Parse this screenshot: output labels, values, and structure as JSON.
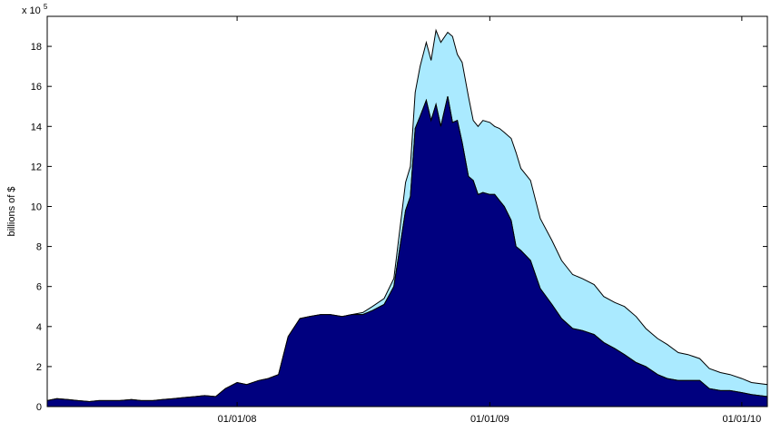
{
  "chart_data": {
    "type": "area",
    "stacked": true,
    "title": "",
    "ylabel": "billions of $",
    "xlabel": "",
    "y_exponent_label": "x 10",
    "y_exponent_power": "5",
    "ylim": [
      0,
      19.5
    ],
    "xlim": [
      "2007-04-01",
      "2010-02-07"
    ],
    "yticks": [
      0,
      2,
      4,
      6,
      8,
      10,
      12,
      14,
      16,
      18
    ],
    "xticks": [
      {
        "date": "2008-01-01",
        "label": "01/01/08"
      },
      {
        "date": "2009-01-01",
        "label": "01/01/09"
      },
      {
        "date": "2010-01-01",
        "label": "01/01/10"
      }
    ],
    "grid": false,
    "legend": "none",
    "colors": {
      "lower": "#00007f",
      "upper": "#aaeaff",
      "outline": "#000000"
    },
    "x": [
      "2007-04-01",
      "2007-04-15",
      "2007-05-01",
      "2007-05-15",
      "2007-06-01",
      "2007-06-15",
      "2007-07-01",
      "2007-07-15",
      "2007-08-01",
      "2007-08-15",
      "2007-09-01",
      "2007-09-15",
      "2007-10-01",
      "2007-10-15",
      "2007-11-01",
      "2007-11-15",
      "2007-12-01",
      "2007-12-15",
      "2008-01-01",
      "2008-01-15",
      "2008-02-01",
      "2008-02-15",
      "2008-03-01",
      "2008-03-15",
      "2008-04-01",
      "2008-04-15",
      "2008-05-01",
      "2008-05-15",
      "2008-06-01",
      "2008-06-15",
      "2008-07-01",
      "2008-07-15",
      "2008-08-01",
      "2008-08-15",
      "2008-09-01",
      "2008-09-08",
      "2008-09-15",
      "2008-09-22",
      "2008-10-01",
      "2008-10-08",
      "2008-10-15",
      "2008-10-22",
      "2008-11-01",
      "2008-11-08",
      "2008-11-15",
      "2008-11-22",
      "2008-12-01",
      "2008-12-08",
      "2008-12-15",
      "2008-12-22",
      "2009-01-01",
      "2009-01-08",
      "2009-01-15",
      "2009-01-22",
      "2009-02-01",
      "2009-02-08",
      "2009-02-15",
      "2009-03-01",
      "2009-03-15",
      "2009-04-01",
      "2009-04-15",
      "2009-05-01",
      "2009-05-15",
      "2009-06-01",
      "2009-06-15",
      "2009-07-01",
      "2009-07-15",
      "2009-08-01",
      "2009-08-15",
      "2009-09-01",
      "2009-09-15",
      "2009-10-01",
      "2009-10-15",
      "2009-11-01",
      "2009-11-15",
      "2009-12-01",
      "2009-12-15",
      "2010-01-01",
      "2010-01-15",
      "2010-02-07"
    ],
    "series": [
      {
        "values": [
          0.3,
          0.4,
          0.35,
          0.3,
          0.25,
          0.3,
          0.3,
          0.3,
          0.35,
          0.3,
          0.3,
          0.35,
          0.4,
          0.45,
          0.5,
          0.55,
          0.5,
          0.9,
          1.2,
          1.1,
          1.3,
          1.4,
          1.6,
          3.5,
          4.4,
          4.5,
          4.6,
          4.6,
          4.5,
          4.6,
          4.6,
          4.8,
          5.1,
          6.0,
          9.8,
          10.5,
          13.9,
          14.5,
          15.3,
          14.3,
          15.1,
          14.0,
          15.5,
          14.2,
          14.3,
          13.2,
          11.5,
          11.3,
          10.6,
          10.7,
          10.6,
          10.6,
          10.3,
          10.0,
          9.3,
          8.0,
          7.8,
          7.3,
          5.9,
          5.1,
          4.4,
          3.9,
          3.8,
          3.6,
          3.2,
          2.9,
          2.6,
          2.2,
          2.0,
          1.6,
          1.4,
          1.3,
          1.3,
          1.3,
          0.9,
          0.8,
          0.8,
          0.7,
          0.6,
          0.5
        ]
      },
      {
        "values": [
          0,
          0,
          0,
          0,
          0,
          0,
          0,
          0,
          0,
          0,
          0,
          0,
          0,
          0,
          0,
          0,
          0,
          0,
          0,
          0,
          0,
          0,
          0,
          0,
          0,
          0,
          0,
          0,
          0,
          0,
          0.1,
          0.2,
          0.3,
          0.4,
          1.4,
          1.5,
          1.8,
          2.5,
          2.9,
          3.0,
          3.7,
          4.2,
          3.2,
          4.3,
          3.3,
          4.0,
          4.0,
          3.0,
          3.4,
          3.6,
          3.6,
          3.4,
          3.6,
          3.7,
          4.1,
          4.7,
          4.1,
          4.0,
          3.5,
          3.2,
          2.9,
          2.7,
          2.6,
          2.5,
          2.3,
          2.3,
          2.4,
          2.3,
          1.9,
          1.8,
          1.7,
          1.4,
          1.3,
          1.1,
          1.0,
          0.9,
          0.8,
          0.7,
          0.6,
          0.6
        ]
      }
    ]
  }
}
